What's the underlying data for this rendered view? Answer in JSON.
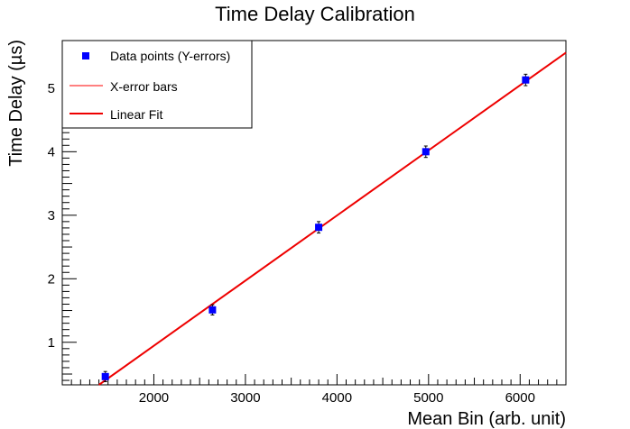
{
  "chart_data": {
    "type": "scatter",
    "title": "Time Delay Calibration",
    "xlabel": "Mean Bin (arb. unit)",
    "ylabel": "Time Delay (µs)",
    "xlim": [
      1000,
      6500
    ],
    "ylim": [
      0.33,
      5.75
    ],
    "x_ticks": [
      2000,
      3000,
      4000,
      5000,
      6000
    ],
    "y_ticks": [
      1,
      2,
      3,
      4,
      5
    ],
    "grid": false,
    "legend_position": "top-left",
    "series": [
      {
        "name": "Data points (Y-errors)",
        "kind": "points",
        "color": "#0000ff",
        "x": [
          1470,
          2640,
          3800,
          4970,
          6060
        ],
        "y": [
          0.46,
          1.51,
          2.81,
          4.0,
          5.13
        ],
        "y_err": [
          0.08,
          0.08,
          0.09,
          0.09,
          0.09
        ]
      },
      {
        "name": "X-error bars",
        "kind": "xerror",
        "color": "#ff0000",
        "x_err": [
          0,
          0,
          0,
          0,
          0
        ]
      },
      {
        "name": "Linear Fit",
        "kind": "line",
        "color": "#ee0000",
        "x": [
          1400,
          6500
        ],
        "y": [
          0.33,
          5.56
        ]
      }
    ]
  }
}
